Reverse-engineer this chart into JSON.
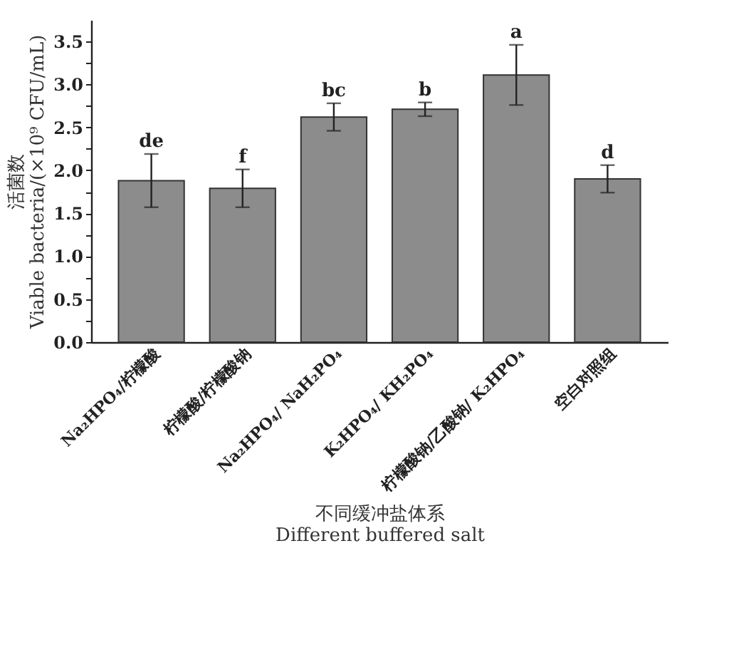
{
  "chart_data": {
    "type": "bar",
    "xlabel": "不同缓冲盐体系\nDifferent buffered salt",
    "ylabel": "活菌数\nViable bacteria/(×10⁹ CFU/mL)",
    "categories": [
      "Na₂HPO₄/柠檬酸",
      "柠檬酸/柠檬酸钠",
      "Na₂HPO₄/ NaH₂PO₄",
      "K₂HPO₄/ KH₂PO₄",
      "柠檬酸钠/乙酸钠/ K₂HPO₄",
      "空白对照组"
    ],
    "values": [
      1.88,
      1.79,
      2.62,
      2.71,
      3.11,
      1.9
    ],
    "errors": [
      0.31,
      0.22,
      0.16,
      0.08,
      0.35,
      0.16
    ],
    "color": "#8c8c8c",
    "ylim": [
      0,
      3.75
    ],
    "yticks": [
      {
        "value": 0,
        "label": "0.0"
      },
      {
        "value": 0.25,
        "label": null
      },
      0.5,
      {
        "value": 0.75,
        "label": null
      },
      {
        "value": 1,
        "label": "1.0"
      },
      {
        "value": 1.25,
        "label": null
      },
      1.5,
      {
        "value": 1.75,
        "label": null
      },
      {
        "value": 2,
        "label": "2.0"
      },
      {
        "value": 2.25,
        "label": null
      },
      2.5,
      {
        "value": 2.75,
        "label": null
      },
      {
        "value": 3,
        "label": "3.0"
      },
      {
        "value": 3.25,
        "label": null
      },
      3.5
    ],
    "annotations": [
      {
        "text": "de",
        "x": "Na₂HPO₄/柠檬酸",
        "y": 2.19
      },
      {
        "text": "f",
        "x": "柠檬酸/柠檬酸钠",
        "y": 2.01
      },
      {
        "text": "bc",
        "x": "Na₂HPO₄/ NaH₂PO₄",
        "y": 2.78
      },
      {
        "text": "b",
        "x": "K₂HPO₄/ KH₂PO₄",
        "y": 2.79
      },
      {
        "text": "a",
        "x": "柠檬酸钠/乙酸钠/ K₂HPO₄",
        "y": 3.46
      },
      {
        "text": "d",
        "x": "空白对照组",
        "y": 2.06
      }
    ],
    "grid": false
  }
}
